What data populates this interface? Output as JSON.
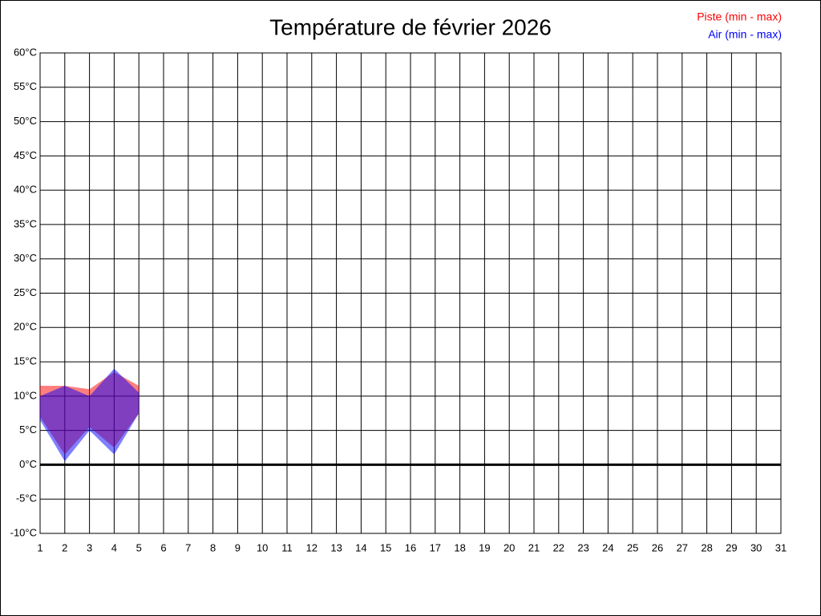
{
  "chart_data": {
    "type": "range-area",
    "title": "Température de février 2026",
    "x": [
      1,
      2,
      3,
      4,
      5
    ],
    "series": [
      {
        "name": "Piste (min - max)",
        "color": "#ff0000",
        "min": [
          7,
          1.5,
          5.5,
          2.5,
          7.5
        ],
        "max": [
          11.5,
          11.5,
          11,
          13.5,
          11.5
        ]
      },
      {
        "name": "Air (min - max)",
        "color": "#0000ff",
        "min": [
          6.5,
          0.5,
          5,
          1.5,
          7.5
        ],
        "max": [
          10,
          11.5,
          10,
          14,
          10.5
        ]
      }
    ],
    "xlim": [
      1,
      31
    ],
    "xticks": [
      1,
      2,
      3,
      4,
      5,
      6,
      7,
      8,
      9,
      10,
      11,
      12,
      13,
      14,
      15,
      16,
      17,
      18,
      19,
      20,
      21,
      22,
      23,
      24,
      25,
      26,
      27,
      28,
      29,
      30,
      31
    ],
    "ylim": [
      -10,
      60
    ],
    "yticks": [
      {
        "value": -10,
        "label": "-10°C"
      },
      {
        "value": -5,
        "label": "-5°C"
      },
      {
        "value": 0,
        "label": "0°C"
      },
      {
        "value": 5,
        "label": "5°C"
      },
      {
        "value": 10,
        "label": "10°C"
      },
      {
        "value": 15,
        "label": "15°C"
      },
      {
        "value": 20,
        "label": "20°C"
      },
      {
        "value": 25,
        "label": "25°C"
      },
      {
        "value": 30,
        "label": "30°C"
      },
      {
        "value": 35,
        "label": "35°C"
      },
      {
        "value": 40,
        "label": "40°C"
      },
      {
        "value": 45,
        "label": "45°C"
      },
      {
        "value": 50,
        "label": "50°C"
      },
      {
        "value": 55,
        "label": "55°C"
      },
      {
        "value": 60,
        "label": "60°C"
      }
    ],
    "grid": true,
    "zero_line": true,
    "legend": "top-right"
  }
}
